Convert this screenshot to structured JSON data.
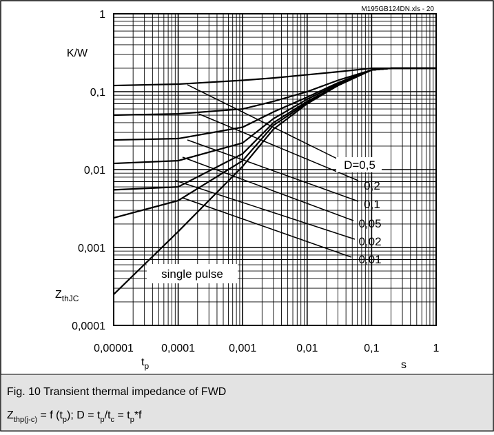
{
  "chart_data": {
    "type": "line",
    "source_note": "M195GB124DN.xls - 20",
    "y_unit": "K/W",
    "y_label": {
      "main": "Z",
      "sub": "thJC"
    },
    "x_label": {
      "main": "t",
      "sub": "p"
    },
    "x_unit": "s",
    "log_x": true,
    "log_y": true,
    "grid": true,
    "minor_grid": true,
    "color": "#000000",
    "xlim": [
      1e-05,
      1
    ],
    "ylim": [
      0.0001,
      1
    ],
    "xticks": [
      {
        "value": 1e-05,
        "label": "0,00001"
      },
      {
        "value": 0.0001,
        "label": "0,0001"
      },
      {
        "value": 0.001,
        "label": "0,001"
      },
      {
        "value": 0.01,
        "label": "0,01"
      },
      {
        "value": 0.1,
        "label": "0,1"
      },
      1
    ],
    "yticks": [
      {
        "value": 0.0001,
        "label": "0,0001"
      },
      {
        "value": 0.001,
        "label": "0,001"
      },
      {
        "value": 0.01,
        "label": "0,01"
      },
      {
        "value": 0.1,
        "label": "0,1"
      },
      1
    ],
    "x": [
      1e-05,
      0.0001,
      0.001,
      0.003,
      0.01,
      0.03,
      0.1,
      0.2,
      1
    ],
    "series": [
      {
        "name": "D=0,5",
        "values": [
          0.12,
          0.125,
          0.14,
          0.15,
          0.165,
          0.18,
          0.2,
          0.2,
          0.2
        ]
      },
      {
        "name": "0,2",
        "values": [
          0.05,
          0.052,
          0.06,
          0.075,
          0.1,
          0.14,
          0.19,
          0.2,
          0.2
        ]
      },
      {
        "name": "0,1",
        "values": [
          0.024,
          0.025,
          0.035,
          0.055,
          0.085,
          0.13,
          0.19,
          0.2,
          0.2
        ]
      },
      {
        "name": "0,05",
        "values": [
          0.012,
          0.013,
          0.022,
          0.045,
          0.08,
          0.125,
          0.19,
          0.2,
          0.2
        ]
      },
      {
        "name": "0,02",
        "values": [
          0.0055,
          0.006,
          0.016,
          0.04,
          0.075,
          0.12,
          0.19,
          0.2,
          0.2
        ]
      },
      {
        "name": "0,01",
        "values": [
          0.0024,
          0.004,
          0.013,
          0.037,
          0.072,
          0.12,
          0.19,
          0.2,
          0.2
        ]
      },
      {
        "name": "single pulse",
        "values": [
          0.00025,
          0.0016,
          0.011,
          0.033,
          0.07,
          0.12,
          0.19,
          0.2,
          0.2
        ]
      }
    ],
    "caption": "Fig. 10 Transient thermal impedance of FWD",
    "formula": [
      {
        "text": "Z"
      },
      {
        "text": "thp(j-c)",
        "sub": true
      },
      {
        "text": " = f (t"
      },
      {
        "text": "p",
        "sub": true
      },
      {
        "text": "); D = t"
      },
      {
        "text": "p",
        "sub": true
      },
      {
        "text": "/t"
      },
      {
        "text": "c",
        "sub": true
      },
      {
        "text": " = t"
      },
      {
        "text": "p",
        "sub": true
      },
      {
        "text": "*f"
      }
    ]
  }
}
